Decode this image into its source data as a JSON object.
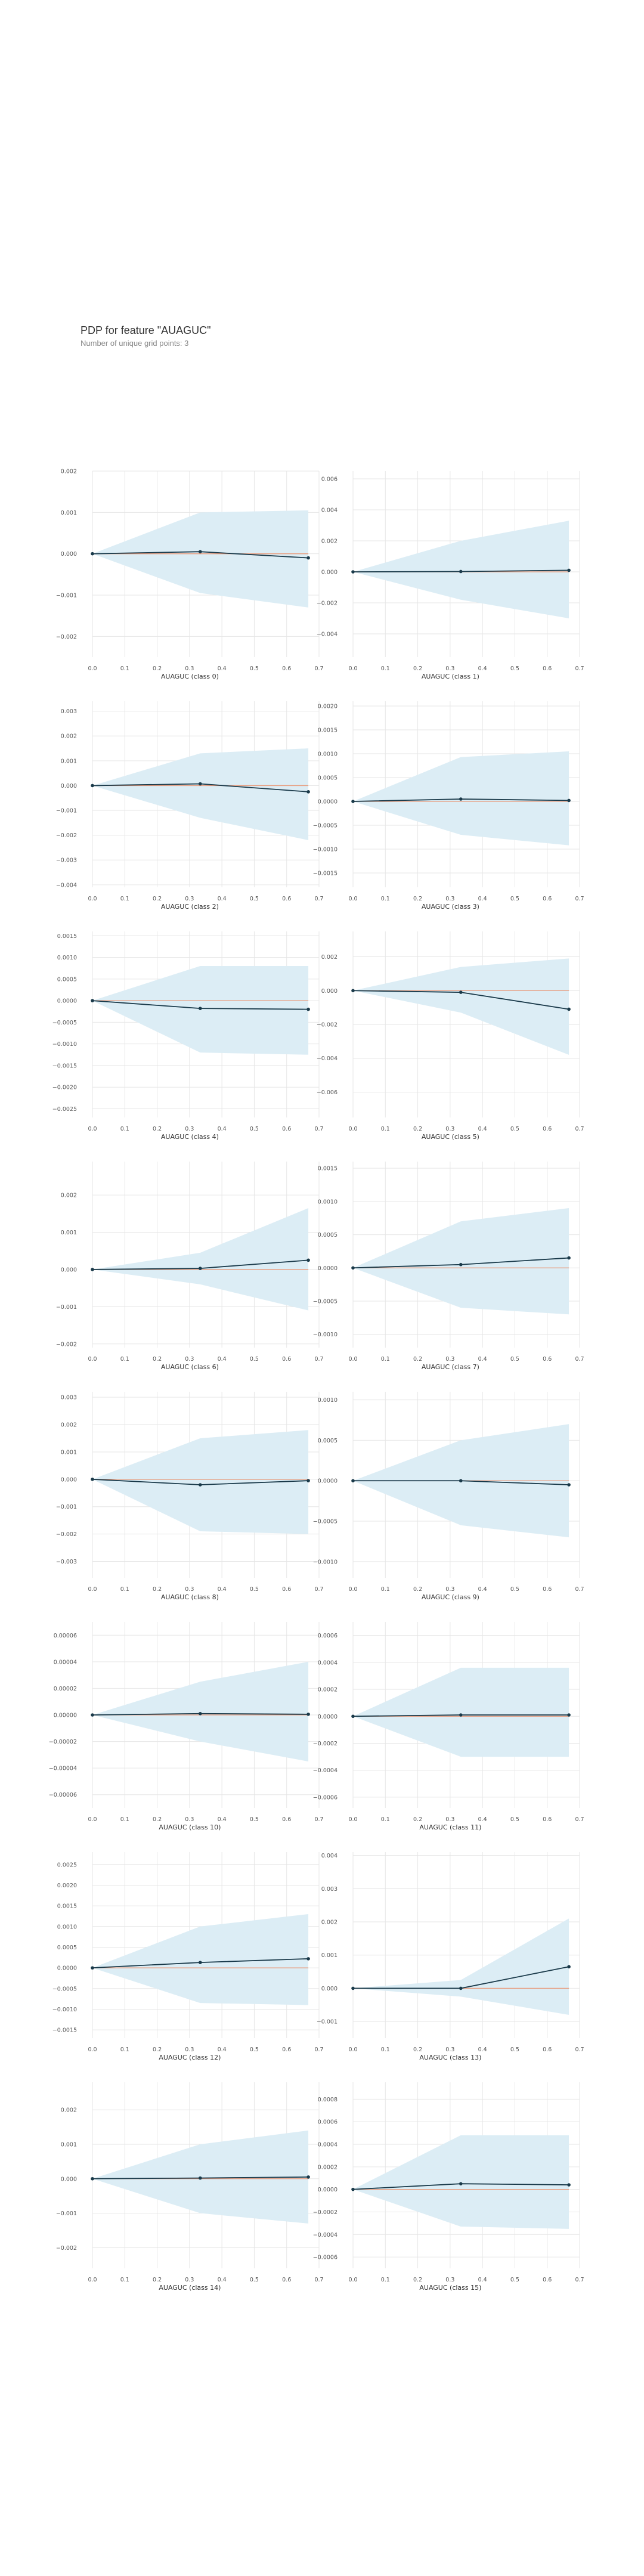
{
  "title": "PDP for feature \"AUAGUC\"",
  "subtitle": "Number of unique grid points: 3",
  "colors": {
    "band": "#dcedf5",
    "line": "#1a3a4a",
    "zero": "#e89a7a",
    "grid": "#e6e6e6"
  },
  "chart_data": [
    {
      "type": "line",
      "xlabel": "AUAGUC (class 0)",
      "x": [
        0,
        0.333,
        0.667
      ],
      "y": [
        0,
        5e-05,
        -0.0001
      ],
      "upper": [
        0,
        0.001,
        0.00105
      ],
      "lower": [
        0,
        -0.00095,
        -0.0013
      ],
      "xlim": [
        0,
        0.7
      ],
      "ylim": [
        -0.0025,
        0.002
      ],
      "xticks": [
        "0.0",
        "0.1",
        "0.2",
        "0.3",
        "0.4",
        "0.5",
        "0.6",
        "0.7"
      ],
      "yticks": [
        0.002,
        0.001,
        0,
        -0.001,
        -0.002
      ],
      "ytick_labels": [
        "0.002",
        "0.001",
        "0.000",
        "−0.001",
        "−0.002"
      ]
    },
    {
      "type": "line",
      "xlabel": "AUAGUC (class 1)",
      "x": [
        0,
        0.333,
        0.667
      ],
      "y": [
        0,
        2e-05,
        0.0001
      ],
      "upper": [
        0,
        0.002,
        0.0033
      ],
      "lower": [
        0,
        -0.0018,
        -0.003
      ],
      "xlim": [
        0,
        0.7
      ],
      "ylim": [
        -0.0055,
        0.0065
      ],
      "xticks": [
        "0.0",
        "0.1",
        "0.2",
        "0.3",
        "0.4",
        "0.5",
        "0.6",
        "0.7"
      ],
      "yticks": [
        0.006,
        0.004,
        0.002,
        0,
        -0.002,
        -0.004
      ],
      "ytick_labels": [
        "0.006",
        "0.004",
        "0.002",
        "0.000",
        "−0.002",
        "−0.004"
      ]
    },
    {
      "type": "line",
      "xlabel": "AUAGUC (class 2)",
      "x": [
        0,
        0.333,
        0.667
      ],
      "y": [
        0,
        7e-05,
        -0.00025
      ],
      "upper": [
        0,
        0.0013,
        0.0015
      ],
      "lower": [
        0,
        -0.0013,
        -0.0022
      ],
      "xlim": [
        0,
        0.7
      ],
      "ylim": [
        -0.0041,
        0.0034
      ],
      "xticks": [
        "0.0",
        "0.1",
        "0.2",
        "0.3",
        "0.4",
        "0.5",
        "0.6",
        "0.7"
      ],
      "yticks": [
        0.003,
        0.002,
        0.001,
        0,
        -0.001,
        -0.002,
        -0.003,
        -0.004
      ],
      "ytick_labels": [
        "0.003",
        "0.002",
        "0.001",
        "0.000",
        "−0.001",
        "−0.002",
        "−0.003",
        "−0.004"
      ]
    },
    {
      "type": "line",
      "xlabel": "AUAGUC (class 3)",
      "x": [
        0,
        0.333,
        0.667
      ],
      "y": [
        0,
        5e-05,
        2e-05
      ],
      "upper": [
        0,
        0.00093,
        0.00105
      ],
      "lower": [
        0,
        -0.0007,
        -0.00092
      ],
      "xlim": [
        0,
        0.7
      ],
      "ylim": [
        -0.0018,
        0.0021
      ],
      "xticks": [
        "0.0",
        "0.1",
        "0.2",
        "0.3",
        "0.4",
        "0.5",
        "0.6",
        "0.7"
      ],
      "yticks": [
        0.002,
        0.0015,
        0.001,
        0.0005,
        0,
        -0.0005,
        -0.001,
        -0.0015
      ],
      "ytick_labels": [
        "0.0020",
        "0.0015",
        "0.0010",
        "0.0005",
        "0.0000",
        "−0.0005",
        "−0.0010",
        "−0.0015"
      ]
    },
    {
      "type": "line",
      "xlabel": "AUAGUC (class 4)",
      "x": [
        0,
        0.333,
        0.667
      ],
      "y": [
        0,
        -0.00018,
        -0.0002
      ],
      "upper": [
        0,
        0.0008,
        0.0008
      ],
      "lower": [
        0,
        -0.0012,
        -0.00125
      ],
      "xlim": [
        0,
        0.7
      ],
      "ylim": [
        -0.0027,
        0.0016
      ],
      "xticks": [
        "0.0",
        "0.1",
        "0.2",
        "0.3",
        "0.4",
        "0.5",
        "0.6",
        "0.7"
      ],
      "yticks": [
        0.0015,
        0.001,
        0.0005,
        0,
        -0.0005,
        -0.001,
        -0.0015,
        -0.002,
        -0.0025
      ],
      "ytick_labels": [
        "0.0015",
        "0.0010",
        "0.0005",
        "0.0000",
        "−0.0005",
        "−0.0010",
        "−0.0015",
        "−0.0020",
        "−0.0025"
      ]
    },
    {
      "type": "line",
      "xlabel": "AUAGUC (class 5)",
      "x": [
        0,
        0.333,
        0.667
      ],
      "y": [
        0,
        -0.0001,
        -0.0011
      ],
      "upper": [
        0,
        0.0014,
        0.0019
      ],
      "lower": [
        0,
        -0.0013,
        -0.0038
      ],
      "xlim": [
        0,
        0.7
      ],
      "ylim": [
        -0.0075,
        0.0035
      ],
      "xticks": [
        "0.0",
        "0.1",
        "0.2",
        "0.3",
        "0.4",
        "0.5",
        "0.6",
        "0.7"
      ],
      "yticks": [
        0.002,
        0,
        -0.002,
        -0.004,
        -0.006
      ],
      "ytick_labels": [
        "0.002",
        "0.000",
        "−0.002",
        "−0.004",
        "−0.006"
      ]
    },
    {
      "type": "line",
      "xlabel": "AUAGUC (class 6)",
      "x": [
        0,
        0.333,
        0.667
      ],
      "y": [
        0,
        3e-05,
        0.00025
      ],
      "upper": [
        0,
        0.00045,
        0.00165
      ],
      "lower": [
        0,
        -0.0004,
        -0.0011
      ],
      "xlim": [
        0,
        0.7
      ],
      "ylim": [
        -0.0021,
        0.0029
      ],
      "xticks": [
        "0.0",
        "0.1",
        "0.2",
        "0.3",
        "0.4",
        "0.5",
        "0.6",
        "0.7"
      ],
      "yticks": [
        0.002,
        0.001,
        0,
        -0.001,
        -0.002
      ],
      "ytick_labels": [
        "0.002",
        "0.001",
        "0.000",
        "−0.001",
        "−0.002"
      ]
    },
    {
      "type": "line",
      "xlabel": "AUAGUC (class 7)",
      "x": [
        0,
        0.333,
        0.667
      ],
      "y": [
        0,
        5e-05,
        0.00015
      ],
      "upper": [
        0,
        0.0007,
        0.0009
      ],
      "lower": [
        0,
        -0.0006,
        -0.0007
      ],
      "xlim": [
        0,
        0.7
      ],
      "ylim": [
        -0.0012,
        0.0016
      ],
      "xticks": [
        "0.0",
        "0.1",
        "0.2",
        "0.3",
        "0.4",
        "0.5",
        "0.6",
        "0.7"
      ],
      "yticks": [
        0.0015,
        0.001,
        0.0005,
        0,
        -0.0005,
        -0.001
      ],
      "ytick_labels": [
        "0.0015",
        "0.0010",
        "0.0005",
        "0.0000",
        "−0.0005",
        "−0.0010"
      ]
    },
    {
      "type": "line",
      "xlabel": "AUAGUC (class 8)",
      "x": [
        0,
        0.333,
        0.667
      ],
      "y": [
        0,
        -0.0002,
        -5e-05
      ],
      "upper": [
        0,
        0.0015,
        0.0018
      ],
      "lower": [
        0,
        -0.0019,
        -0.002
      ],
      "xlim": [
        0,
        0.7
      ],
      "ylim": [
        -0.0036,
        0.0032
      ],
      "xticks": [
        "0.0",
        "0.1",
        "0.2",
        "0.3",
        "0.4",
        "0.5",
        "0.6",
        "0.7"
      ],
      "yticks": [
        0.003,
        0.002,
        0.001,
        0,
        -0.001,
        -0.002,
        -0.003
      ],
      "ytick_labels": [
        "0.003",
        "0.002",
        "0.001",
        "0.000",
        "−0.001",
        "−0.002",
        "−0.003"
      ]
    },
    {
      "type": "line",
      "xlabel": "AUAGUC (class 9)",
      "x": [
        0,
        0.333,
        0.667
      ],
      "y": [
        0,
        0,
        -5e-05
      ],
      "upper": [
        0,
        0.0005,
        0.0007
      ],
      "lower": [
        0,
        -0.00055,
        -0.0007
      ],
      "xlim": [
        0,
        0.7
      ],
      "ylim": [
        -0.0012,
        0.0011
      ],
      "xticks": [
        "0.0",
        "0.1",
        "0.2",
        "0.3",
        "0.4",
        "0.5",
        "0.6",
        "0.7"
      ],
      "yticks": [
        0.001,
        0.0005,
        0,
        -0.0005,
        -0.001
      ],
      "ytick_labels": [
        "0.0010",
        "0.0005",
        "0.0000",
        "−0.0005",
        "−0.0010"
      ]
    },
    {
      "type": "line",
      "xlabel": "AUAGUC (class 10)",
      "x": [
        0,
        0.333,
        0.667
      ],
      "y": [
        0,
        1e-06,
        5e-07
      ],
      "upper": [
        0,
        2.5e-05,
        4e-05
      ],
      "lower": [
        0,
        -2e-05,
        -3.5e-05
      ],
      "xlim": [
        0,
        0.7
      ],
      "ylim": [
        -7e-05,
        7e-05
      ],
      "xticks": [
        "0.0",
        "0.1",
        "0.2",
        "0.3",
        "0.4",
        "0.5",
        "0.6",
        "0.7"
      ],
      "yticks": [
        6e-05,
        4e-05,
        2e-05,
        0,
        -2e-05,
        -4e-05,
        -6e-05
      ],
      "ytick_labels": [
        "0.00006",
        "0.00004",
        "0.00002",
        "0.00000",
        "−0.00002",
        "−0.00004",
        "−0.00006"
      ]
    },
    {
      "type": "line",
      "xlabel": "AUAGUC (class 11)",
      "x": [
        0,
        0.333,
        0.667
      ],
      "y": [
        0,
        1e-05,
        1e-05
      ],
      "upper": [
        0,
        0.00036,
        0.00036
      ],
      "lower": [
        0,
        -0.0003,
        -0.0003
      ],
      "xlim": [
        0,
        0.7
      ],
      "ylim": [
        -0.00068,
        0.0007
      ],
      "xticks": [
        "0.0",
        "0.1",
        "0.2",
        "0.3",
        "0.4",
        "0.5",
        "0.6",
        "0.7"
      ],
      "yticks": [
        0.0006,
        0.0004,
        0.0002,
        0,
        -0.0002,
        -0.0004,
        -0.0006
      ],
      "ytick_labels": [
        "0.0006",
        "0.0004",
        "0.0002",
        "0.0000",
        "−0.0002",
        "−0.0004",
        "−0.0006"
      ]
    },
    {
      "type": "line",
      "xlabel": "AUAGUC (class 12)",
      "x": [
        0,
        0.333,
        0.667
      ],
      "y": [
        0,
        0.00013,
        0.00022
      ],
      "upper": [
        0,
        0.001,
        0.0013
      ],
      "lower": [
        0,
        -0.00085,
        -0.0009
      ],
      "xlim": [
        0,
        0.7
      ],
      "ylim": [
        -0.0017,
        0.0028
      ],
      "xticks": [
        "0.0",
        "0.1",
        "0.2",
        "0.3",
        "0.4",
        "0.5",
        "0.6",
        "0.7"
      ],
      "yticks": [
        0.0025,
        0.002,
        0.0015,
        0.001,
        0.0005,
        0,
        -0.0005,
        -0.001,
        -0.0015
      ],
      "ytick_labels": [
        "0.0025",
        "0.0020",
        "0.0015",
        "0.0010",
        "0.0005",
        "0.0000",
        "−0.0005",
        "−0.0010",
        "−0.0015"
      ]
    },
    {
      "type": "line",
      "xlabel": "AUAGUC (class 13)",
      "x": [
        0,
        0.333,
        0.667
      ],
      "y": [
        0,
        0,
        0.00065
      ],
      "upper": [
        0,
        0.00025,
        0.0021
      ],
      "lower": [
        0,
        -0.00025,
        -0.0008
      ],
      "xlim": [
        0,
        0.7
      ],
      "ylim": [
        -0.0015,
        0.0041
      ],
      "xticks": [
        "0.0",
        "0.1",
        "0.2",
        "0.3",
        "0.4",
        "0.5",
        "0.6",
        "0.7"
      ],
      "yticks": [
        0.004,
        0.003,
        0.002,
        0.001,
        0,
        -0.001
      ],
      "ytick_labels": [
        "0.004",
        "0.003",
        "0.002",
        "0.001",
        "0.000",
        "−0.001"
      ]
    },
    {
      "type": "line",
      "xlabel": "AUAGUC (class 14)",
      "x": [
        0,
        0.333,
        0.667
      ],
      "y": [
        0,
        2e-05,
        5e-05
      ],
      "upper": [
        0,
        0.001,
        0.0014
      ],
      "lower": [
        0,
        -0.001,
        -0.0013
      ],
      "xlim": [
        0,
        0.7
      ],
      "ylim": [
        -0.0026,
        0.0028
      ],
      "xticks": [
        "0.0",
        "0.1",
        "0.2",
        "0.3",
        "0.4",
        "0.5",
        "0.6",
        "0.7"
      ],
      "yticks": [
        0.002,
        0.001,
        0,
        -0.001,
        -0.002
      ],
      "ytick_labels": [
        "0.002",
        "0.001",
        "0.000",
        "−0.001",
        "−0.002"
      ]
    },
    {
      "type": "line",
      "xlabel": "AUAGUC (class 15)",
      "x": [
        0,
        0.333,
        0.667
      ],
      "y": [
        0,
        5e-05,
        4e-05
      ],
      "upper": [
        0,
        0.00048,
        0.00048
      ],
      "lower": [
        0,
        -0.00033,
        -0.00035
      ],
      "xlim": [
        0,
        0.7
      ],
      "ylim": [
        -0.0007,
        0.00095
      ],
      "xticks": [
        "0.0",
        "0.1",
        "0.2",
        "0.3",
        "0.4",
        "0.5",
        "0.6",
        "0.7"
      ],
      "yticks": [
        0.0008,
        0.0006,
        0.0004,
        0.0002,
        0,
        -0.0002,
        -0.0004,
        -0.0006
      ],
      "ytick_labels": [
        "0.0008",
        "0.0006",
        "0.0004",
        "0.0002",
        "0.0000",
        "−0.0002",
        "−0.0004",
        "−0.0006"
      ]
    }
  ]
}
